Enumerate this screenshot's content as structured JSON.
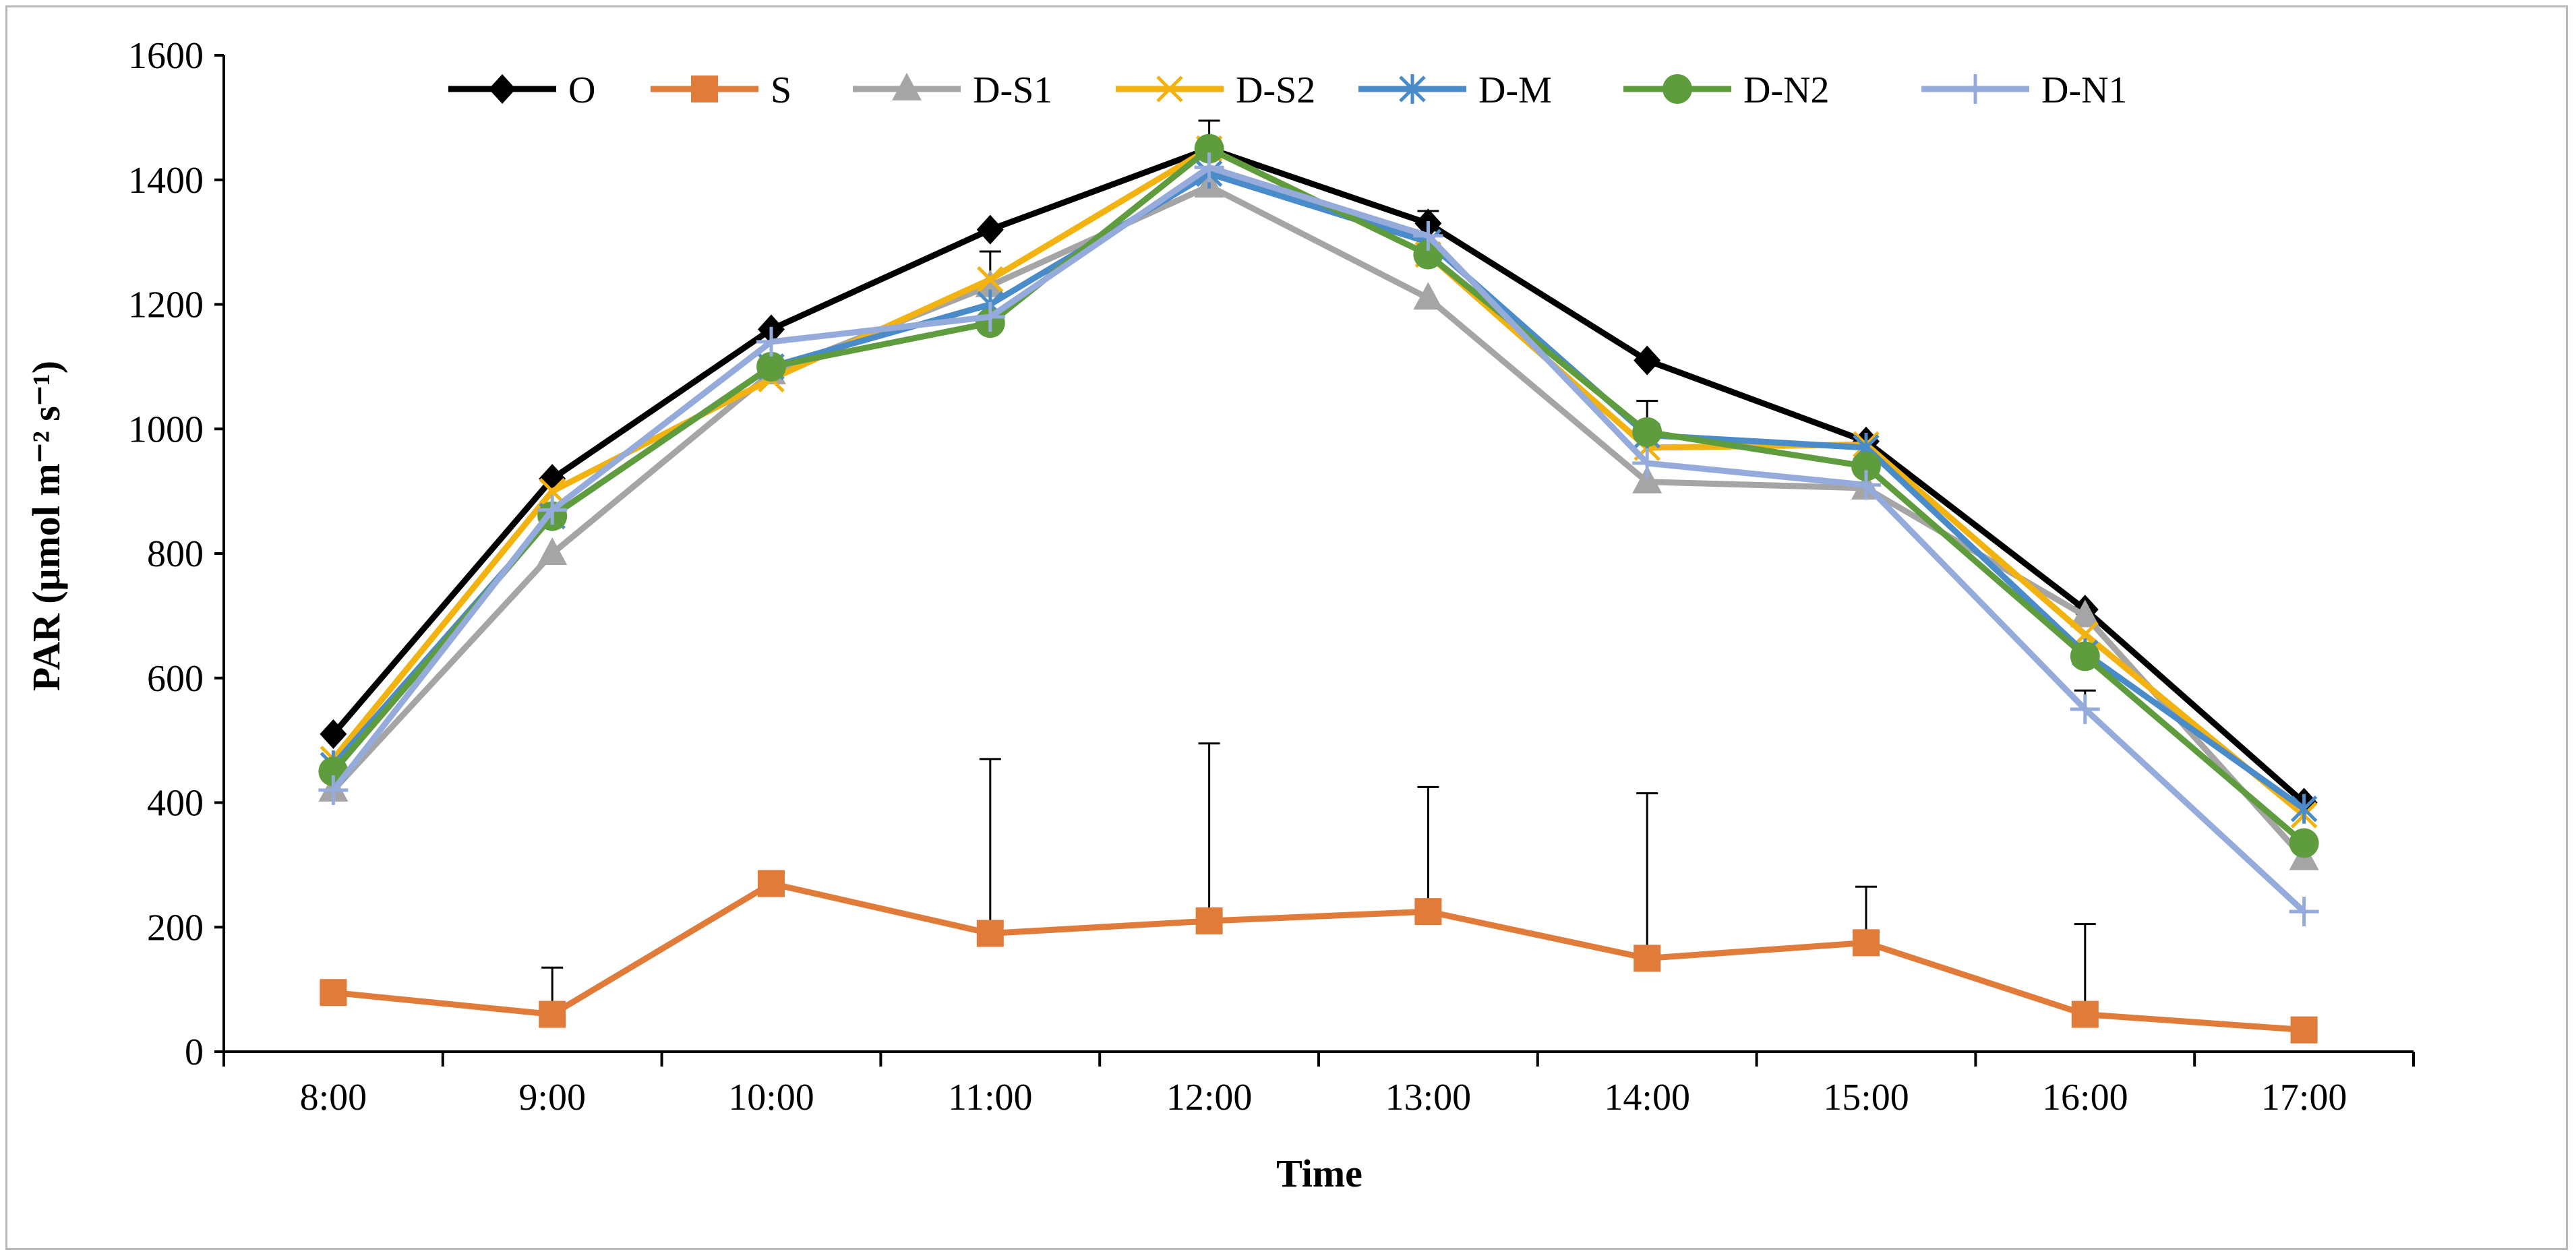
{
  "chart_data": {
    "type": "line",
    "title": "",
    "xlabel": "Time",
    "ylabel": "PAR (μmol m⁻² s⁻¹)",
    "ylim": [
      0,
      1600
    ],
    "yticks": [
      0,
      200,
      400,
      600,
      800,
      1000,
      1200,
      1400,
      1600
    ],
    "categories": [
      "8:00",
      "9:00",
      "10:00",
      "11:00",
      "12:00",
      "13:00",
      "14:00",
      "15:00",
      "16:00",
      "17:00"
    ],
    "legend_position": "top",
    "grid": false,
    "series": [
      {
        "name": "O",
        "color": "#000000",
        "marker": "diamond",
        "values": [
          510,
          920,
          1160,
          1320,
          1450,
          1330,
          1110,
          980,
          710,
          400
        ],
        "errors": [
          0,
          0,
          0,
          0,
          45,
          20,
          0,
          0,
          0,
          0
        ]
      },
      {
        "name": "S",
        "color": "#E07B39",
        "marker": "square",
        "values": [
          95,
          60,
          270,
          190,
          210,
          225,
          150,
          175,
          60,
          35
        ],
        "errors": [
          0,
          75,
          0,
          280,
          285,
          200,
          265,
          90,
          145,
          0
        ]
      },
      {
        "name": "D-S1",
        "color": "#A5A5A5",
        "marker": "triangle",
        "values": [
          420,
          800,
          1090,
          1230,
          1390,
          1210,
          915,
          905,
          700,
          310
        ],
        "errors": [
          0,
          0,
          0,
          0,
          0,
          0,
          0,
          0,
          0,
          0
        ]
      },
      {
        "name": "D-S2",
        "color": "#F2B20F",
        "marker": "x",
        "values": [
          470,
          900,
          1080,
          1240,
          1450,
          1280,
          970,
          975,
          670,
          380
        ],
        "errors": [
          0,
          0,
          0,
          45,
          0,
          0,
          0,
          0,
          0,
          0
        ]
      },
      {
        "name": "D-M",
        "color": "#4A8BC9",
        "marker": "asterisk",
        "values": [
          460,
          860,
          1100,
          1200,
          1410,
          1300,
          990,
          970,
          640,
          390
        ],
        "errors": [
          0,
          0,
          0,
          0,
          0,
          0,
          0,
          0,
          0,
          0
        ]
      },
      {
        "name": "D-N2",
        "color": "#5E9C3E",
        "marker": "circle",
        "values": [
          450,
          860,
          1100,
          1170,
          1450,
          1280,
          995,
          940,
          635,
          335
        ],
        "errors": [
          0,
          0,
          0,
          0,
          0,
          0,
          50,
          0,
          0,
          0
        ]
      },
      {
        "name": "D-N1",
        "color": "#94ABDC",
        "marker": "plus",
        "values": [
          420,
          870,
          1140,
          1180,
          1420,
          1310,
          945,
          910,
          550,
          225
        ],
        "errors": [
          0,
          0,
          0,
          0,
          0,
          0,
          0,
          0,
          30,
          0
        ]
      }
    ]
  }
}
